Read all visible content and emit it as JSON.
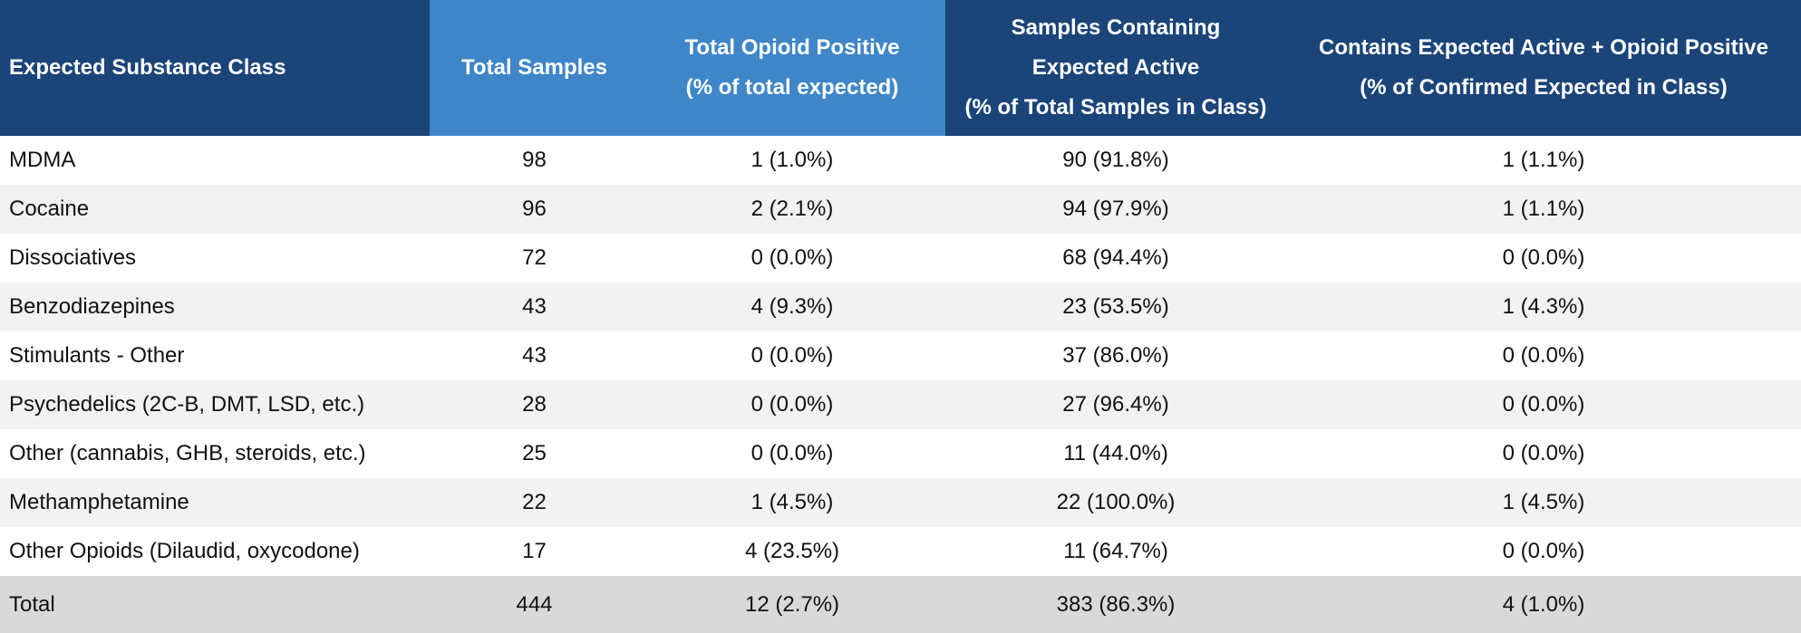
{
  "table": {
    "header": [
      [
        "Expected Substance Class"
      ],
      [
        "Total Samples"
      ],
      [
        "Total Opioid Positive",
        "(% of total expected)"
      ],
      [
        "Samples Containing",
        "Expected Active",
        "(% of Total Samples in Class)"
      ],
      [
        "Contains Expected Active + Opioid Positive",
        "(% of Confirmed Expected in Class)"
      ]
    ],
    "rows": [
      [
        "MDMA",
        "98",
        "1 (1.0%)",
        "90 (91.8%)",
        "1 (1.1%)"
      ],
      [
        "Cocaine",
        "96",
        "2 (2.1%)",
        "94 (97.9%)",
        "1 (1.1%)"
      ],
      [
        "Dissociatives",
        "72",
        "0 (0.0%)",
        "68 (94.4%)",
        "0 (0.0%)"
      ],
      [
        "Benzodiazepines",
        "43",
        "4 (9.3%)",
        "23 (53.5%)",
        "1 (4.3%)"
      ],
      [
        "Stimulants - Other",
        "43",
        "0 (0.0%)",
        "37 (86.0%)",
        "0 (0.0%)"
      ],
      [
        "Psychedelics (2C-B, DMT, LSD, etc.)",
        "28",
        "0 (0.0%)",
        "27 (96.4%)",
        "0 (0.0%)"
      ],
      [
        "Other (cannabis, GHB, steroids, etc.)",
        "25",
        "0 (0.0%)",
        "11 (44.0%)",
        "0 (0.0%)"
      ],
      [
        "Methamphetamine",
        "22",
        "1 (4.5%)",
        "22 (100.0%)",
        "1 (4.5%)"
      ],
      [
        "Other Opioids (Dilaudid, oxycodone)",
        "17",
        "4 (23.5%)",
        "11 (64.7%)",
        "0 (0.0%)"
      ]
    ],
    "total": [
      "Total",
      "444",
      "12 (2.7%)",
      "383 (86.3%)",
      "4 (1.0%)"
    ]
  }
}
